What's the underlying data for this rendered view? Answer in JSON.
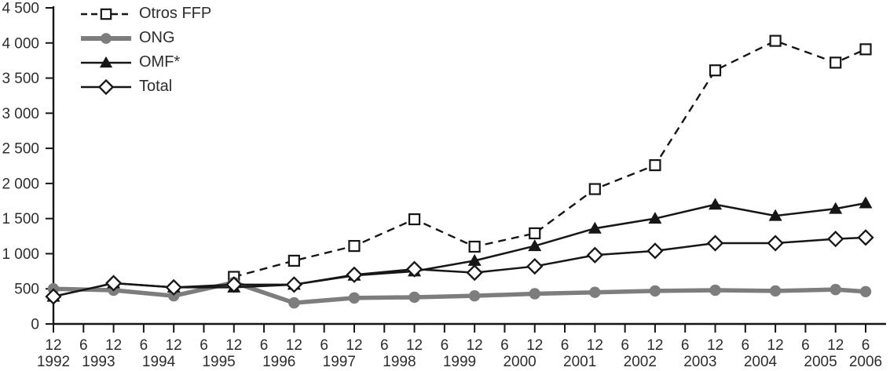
{
  "chart_data": {
    "type": "line",
    "title": "",
    "xlabel": "",
    "ylabel": "",
    "ylim": [
      0,
      4500
    ],
    "ytick_step": 500,
    "grid": false,
    "legend_position": "top-left",
    "colors": {
      "line_black": "#161616",
      "line_gray": "#7d7d7d",
      "text": "#2d2d2d",
      "background": "#ffffff"
    },
    "ytick_labels": [
      "0",
      "500",
      "1 000",
      "1 500",
      "2 000",
      "2 500",
      "3 000",
      "3 500",
      "4 000",
      "4 500"
    ],
    "x_tick_labels": [
      "12",
      "6",
      "12",
      "6",
      "12",
      "6",
      "12",
      "6",
      "12",
      "6",
      "12",
      "6",
      "12",
      "6",
      "12",
      "6",
      "12",
      "6",
      "12",
      "6",
      "12",
      "6",
      "12",
      "6",
      "12",
      "6",
      "12",
      "6"
    ],
    "year_labels": [
      {
        "text": "1992",
        "ticks": [
          0
        ]
      },
      {
        "text": "1993",
        "ticks": [
          1,
          2
        ]
      },
      {
        "text": "1994",
        "ticks": [
          3,
          4
        ]
      },
      {
        "text": "1995",
        "ticks": [
          5,
          6
        ]
      },
      {
        "text": "1996",
        "ticks": [
          7,
          8
        ]
      },
      {
        "text": "1997",
        "ticks": [
          9,
          10
        ]
      },
      {
        "text": "1998",
        "ticks": [
          11,
          12
        ]
      },
      {
        "text": "1999",
        "ticks": [
          13,
          14
        ]
      },
      {
        "text": "2000",
        "ticks": [
          15,
          16
        ]
      },
      {
        "text": "2001",
        "ticks": [
          17,
          18
        ]
      },
      {
        "text": "2002",
        "ticks": [
          19,
          20
        ]
      },
      {
        "text": "2003",
        "ticks": [
          21,
          22
        ]
      },
      {
        "text": "2004",
        "ticks": [
          23,
          24
        ]
      },
      {
        "text": "2005",
        "ticks": [
          25,
          26
        ]
      },
      {
        "text": "2006",
        "ticks": [
          27
        ]
      }
    ],
    "series": [
      {
        "name": "Otros FFP",
        "line": "dashed",
        "marker": "open-square",
        "color": "#161616",
        "ticks": [
          6,
          8,
          10,
          12,
          14,
          16,
          18,
          20,
          22,
          24,
          26,
          27
        ],
        "values": [
          670,
          900,
          1110,
          1490,
          1100,
          1290,
          1920,
          2260,
          3610,
          4030,
          3720,
          3910
        ]
      },
      {
        "name": "ONG",
        "line": "solid-thick",
        "marker": "filled-circle",
        "color": "#7d7d7d",
        "ticks": [
          0,
          2,
          4,
          6,
          8,
          10,
          12,
          14,
          16,
          18,
          20,
          22,
          24,
          26,
          27
        ],
        "values": [
          500,
          480,
          400,
          590,
          300,
          370,
          380,
          400,
          430,
          450,
          470,
          480,
          470,
          490,
          460
        ]
      },
      {
        "name": "OMF*",
        "line": "solid",
        "marker": "filled-triangle",
        "color": "#161616",
        "ticks": [
          0,
          2,
          4,
          6,
          8,
          10,
          12,
          14,
          16,
          18,
          20,
          22,
          24,
          26,
          27
        ],
        "values": [
          390,
          580,
          520,
          520,
          560,
          690,
          750,
          900,
          1110,
          1360,
          1500,
          1700,
          1540,
          1640,
          1720
        ]
      },
      {
        "name": "Total",
        "line": "solid",
        "marker": "open-diamond",
        "color": "#161616",
        "ticks": [
          0,
          2,
          4,
          6,
          8,
          10,
          12,
          14,
          16,
          18,
          20,
          22,
          24,
          26,
          27
        ],
        "values": [
          390,
          580,
          520,
          560,
          560,
          700,
          780,
          730,
          820,
          980,
          1040,
          1150,
          1150,
          1210,
          1230
        ]
      }
    ]
  }
}
